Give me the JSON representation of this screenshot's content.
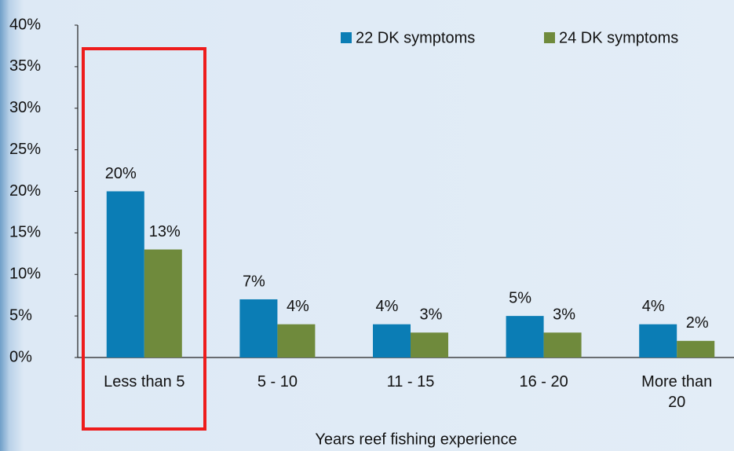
{
  "chart_data": {
    "type": "bar",
    "x_label": "Years reef fishing experience",
    "categories": [
      "Less than 5",
      "5 - 10",
      "11 - 15",
      "16 - 20",
      "More than 20"
    ],
    "series": [
      {
        "name": "22 DK symptoms",
        "color": "#0b7db5",
        "values": [
          20,
          7,
          4,
          5,
          4
        ],
        "value_labels": [
          "20%",
          "7%",
          "4%",
          "5%",
          "4%"
        ]
      },
      {
        "name": "24 DK symptoms",
        "color": "#6f8a3c",
        "values": [
          13,
          4,
          3,
          3,
          2
        ],
        "value_labels": [
          "13%",
          "4%",
          "3%",
          "3%",
          "2%"
        ]
      }
    ],
    "ylim": [
      0,
      40
    ],
    "yticks": [
      {
        "value": 0,
        "label": "0%"
      },
      {
        "value": 5,
        "label": "5%"
      },
      {
        "value": 10,
        "label": "10%"
      },
      {
        "value": 15,
        "label": "15%"
      },
      {
        "value": 20,
        "label": "20%"
      },
      {
        "value": 25,
        "label": "25%"
      },
      {
        "value": 30,
        "label": "30%"
      },
      {
        "value": 35,
        "label": "35%"
      },
      {
        "value": 40,
        "label": "40%"
      }
    ],
    "legend": "top-right"
  }
}
